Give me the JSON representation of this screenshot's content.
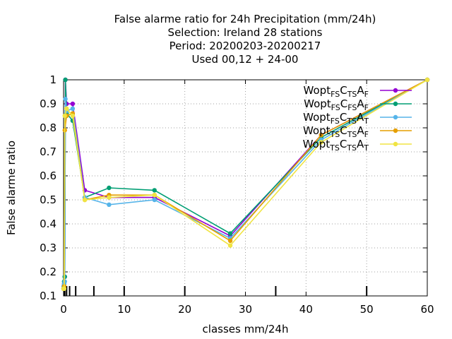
{
  "chart_data": {
    "type": "line",
    "title_lines": [
      "False alarme ratio  for 24h Precipitation (mm/24h)",
      "Selection: Ireland      28 stations",
      "Period: 20200203-20200217",
      "Used  00,12  + 24-00"
    ],
    "xlabel": "classes mm/24h",
    "ylabel": "False alarme ratio",
    "xlim": [
      0,
      60
    ],
    "ylim": [
      0.1,
      1.0
    ],
    "xticks": [
      0,
      10,
      20,
      30,
      40,
      50,
      60
    ],
    "yticks": [
      0.1,
      0.2,
      0.3,
      0.4,
      0.5,
      0.6,
      0.7,
      0.8,
      0.9,
      1.0
    ],
    "class_marks": [
      0.1,
      0.2,
      0.5,
      1,
      2,
      5,
      10,
      20,
      35,
      50
    ],
    "grid": true,
    "legend_position": "top-right",
    "series": [
      {
        "name_parts": [
          [
            "Wopt",
            ""
          ],
          [
            "FS",
            "sub"
          ],
          [
            "C",
            ""
          ],
          [
            "TS",
            "sub"
          ],
          [
            "A",
            ""
          ],
          [
            "F",
            "sub"
          ]
        ],
        "color": "#9400d3",
        "marker": "circle",
        "points": [
          [
            0,
            0.13
          ],
          [
            0.1,
            0.15
          ],
          [
            0.2,
            0.18
          ],
          [
            0.3,
            1.0
          ],
          [
            0.5,
            0.9
          ],
          [
            1.5,
            0.9
          ],
          [
            3.5,
            0.54
          ],
          [
            7.5,
            0.51
          ],
          [
            15,
            0.51
          ],
          [
            27.5,
            0.35
          ],
          [
            42.5,
            0.77
          ],
          [
            60,
            1.0
          ]
        ]
      },
      {
        "name_parts": [
          [
            "Wopt",
            ""
          ],
          [
            "FS",
            "sub"
          ],
          [
            "C",
            ""
          ],
          [
            "FS",
            "sub"
          ],
          [
            "A",
            ""
          ],
          [
            "F",
            "sub"
          ]
        ],
        "color": "#009e73",
        "marker": "circle",
        "points": [
          [
            0,
            0.13
          ],
          [
            0.1,
            0.16
          ],
          [
            0.2,
            0.18
          ],
          [
            0.3,
            1.0
          ],
          [
            0.5,
            0.86
          ],
          [
            1.5,
            0.83
          ],
          [
            3.5,
            0.51
          ],
          [
            7.5,
            0.55
          ],
          [
            15,
            0.54
          ],
          [
            27.5,
            0.36
          ],
          [
            42.5,
            0.76
          ],
          [
            60,
            1.0
          ]
        ]
      },
      {
        "name_parts": [
          [
            "Wopt",
            ""
          ],
          [
            "FS",
            "sub"
          ],
          [
            "C",
            ""
          ],
          [
            "TS",
            "sub"
          ],
          [
            "A",
            ""
          ],
          [
            "T",
            "sub"
          ]
        ],
        "color": "#56b4e9",
        "marker": "circle",
        "points": [
          [
            0,
            0.14
          ],
          [
            0.1,
            0.15
          ],
          [
            0.2,
            0.16
          ],
          [
            0.3,
            0.92
          ],
          [
            0.5,
            0.87
          ],
          [
            1.5,
            0.88
          ],
          [
            3.5,
            0.51
          ],
          [
            7.5,
            0.48
          ],
          [
            15,
            0.5
          ],
          [
            27.5,
            0.34
          ],
          [
            42.5,
            0.75
          ],
          [
            60,
            1.0
          ]
        ]
      },
      {
        "name_parts": [
          [
            "Wopt",
            ""
          ],
          [
            "TS",
            "sub"
          ],
          [
            "C",
            ""
          ],
          [
            "TS",
            "sub"
          ],
          [
            "A",
            ""
          ],
          [
            "F",
            "sub"
          ]
        ],
        "color": "#e69f00",
        "marker": "circle",
        "points": [
          [
            0,
            0.13
          ],
          [
            0.1,
            0.14
          ],
          [
            0.2,
            0.79
          ],
          [
            0.5,
            0.85
          ],
          [
            1.5,
            0.86
          ],
          [
            3.5,
            0.5
          ],
          [
            7.5,
            0.52
          ],
          [
            15,
            0.52
          ],
          [
            27.5,
            0.33
          ],
          [
            42.5,
            0.77
          ],
          [
            60,
            1.0
          ]
        ]
      },
      {
        "name_parts": [
          [
            "Wopt",
            ""
          ],
          [
            "TS",
            "sub"
          ],
          [
            "C",
            ""
          ],
          [
            "TS",
            "sub"
          ],
          [
            "A",
            ""
          ],
          [
            "T",
            "sub"
          ]
        ],
        "color": "#f0e442",
        "marker": "circle",
        "points": [
          [
            0,
            0.13
          ],
          [
            0.1,
            0.13
          ],
          [
            0.2,
            0.85
          ],
          [
            0.5,
            0.88
          ],
          [
            1.5,
            0.85
          ],
          [
            3.5,
            0.5
          ],
          [
            7.5,
            0.51
          ],
          [
            15,
            0.52
          ],
          [
            27.5,
            0.31
          ],
          [
            42.5,
            0.74
          ],
          [
            60,
            1.0
          ]
        ]
      }
    ]
  }
}
